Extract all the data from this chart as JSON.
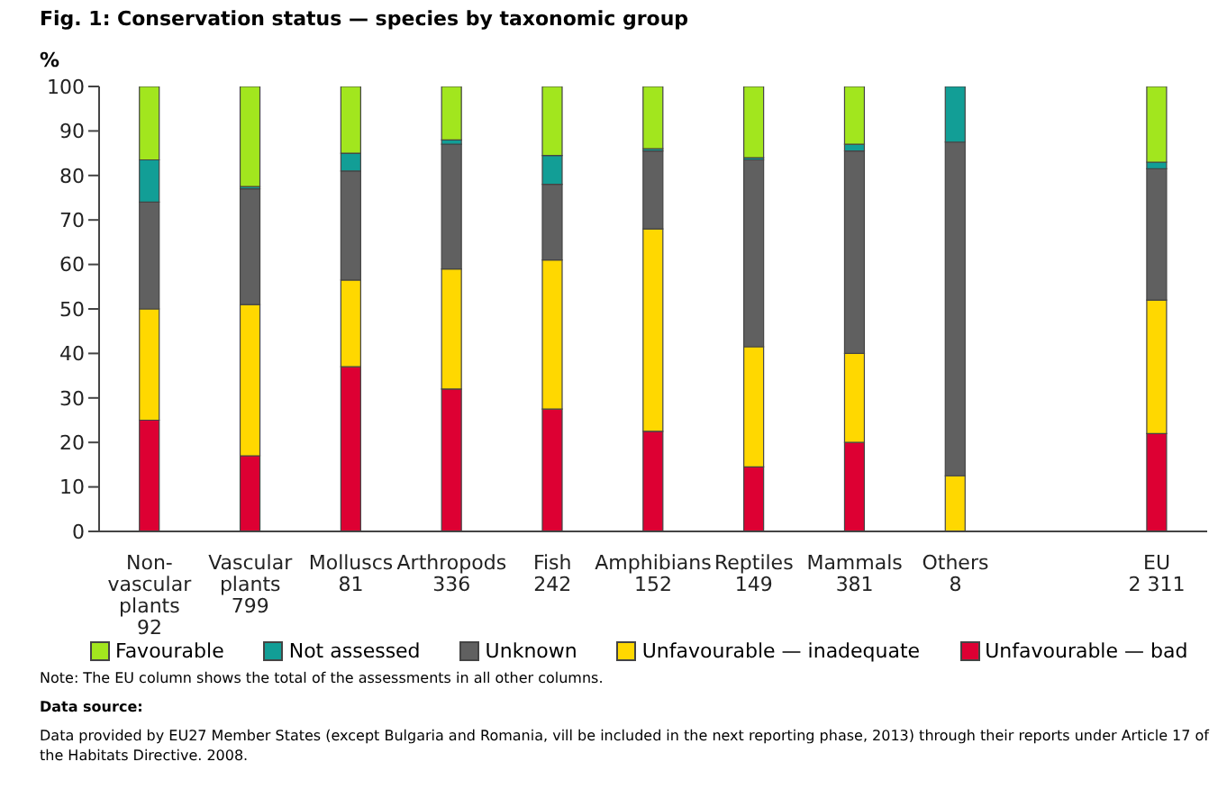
{
  "chart_data": {
    "type": "bar",
    "stacked": true,
    "title": "Fig. 1: Conservation status — species by taxonomic group",
    "ylabel": "%",
    "categories": [
      "Non-\nvascular\nplants\n92",
      "Vascular\nplants\n799",
      "Molluscs\n81",
      "Arthropods\n336",
      "Fish\n242",
      "Amphibians\n152",
      "Reptiles\n149",
      "Mammals\n381",
      "Others\n8",
      null,
      "EU\n2 311"
    ],
    "series": [
      {
        "name": "Unfavourable — bad",
        "color": "#dd0033",
        "values": [
          25,
          17,
          37,
          32,
          27.5,
          22.5,
          14.5,
          20,
          0,
          null,
          22
        ]
      },
      {
        "name": "Unfavourable — inadequate",
        "color": "#ffd800",
        "values": [
          25,
          34,
          19.5,
          27,
          33.5,
          45.5,
          27,
          20,
          12.5,
          null,
          30
        ]
      },
      {
        "name": "Unknown",
        "color": "#606060",
        "values": [
          24,
          26,
          24.5,
          28,
          17,
          17.5,
          42,
          45.5,
          75,
          null,
          29.5
        ]
      },
      {
        "name": "Not assessed",
        "color": "#129e96",
        "values": [
          9.5,
          0.5,
          4,
          1,
          6.5,
          0.5,
          0.5,
          1.5,
          12.5,
          null,
          1.5
        ]
      },
      {
        "name": "Favourable",
        "color": "#a2e61e",
        "values": [
          16.5,
          22.5,
          15,
          12,
          15.5,
          14,
          16,
          13,
          0,
          null,
          17
        ]
      }
    ],
    "ylim": [
      0,
      100
    ],
    "yticks": [
      0,
      10,
      20,
      30,
      40,
      50,
      60,
      70,
      80,
      90,
      100
    ],
    "legend": "bottom",
    "annotations": [
      "Note: The EU column shows the total of the assessments in all other columns.",
      "Data source:",
      "Data provided by EU27 Member States (except Bulgaria and Romania, vill be included in the next reporting phase, 2013) through their reports under Article 17 of the Habitats Directive. 2008."
    ]
  }
}
